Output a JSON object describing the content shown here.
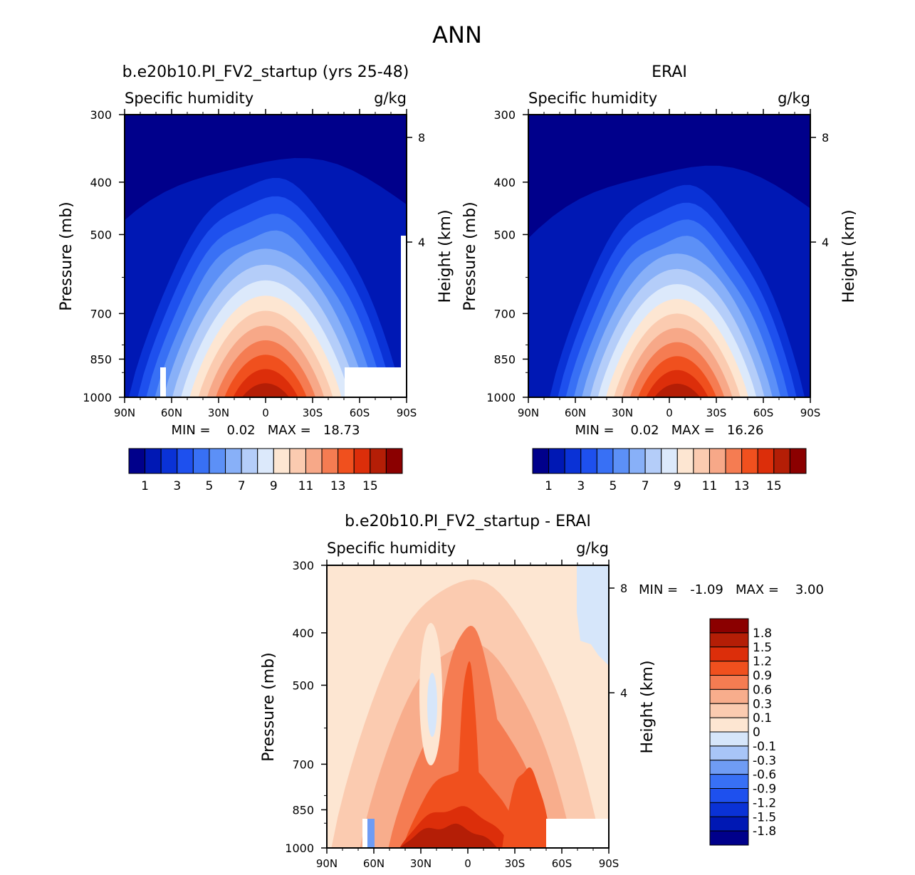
{
  "main_title": "ANN",
  "colors": {
    "abs_levels": [
      "#00008b",
      "#0018b4",
      "#0a32d6",
      "#1e50ee",
      "#3870f5",
      "#5c90f7",
      "#88b0f8",
      "#b4cdf9",
      "#dce9fb",
      "#fde6d2",
      "#fbcbb0",
      "#f7a888",
      "#f57c52",
      "#f0501e",
      "#dc2e0a",
      "#b41e06",
      "#8b0000"
    ],
    "diff_levels": [
      "#00008b",
      "#0018b4",
      "#0a32d6",
      "#1e50ee",
      "#3870f5",
      "#6f9cf4",
      "#a8c5f7",
      "#d6e6fa",
      "#fde6d2",
      "#fbcbb0",
      "#f8ad8c",
      "#f57c52",
      "#f0501e",
      "#dc2e0a",
      "#b41e06",
      "#8b0000"
    ]
  },
  "panels": [
    {
      "title": "b.e20b10.PI_FV2_startup (yrs 25-48)",
      "left_label": "Specific humidity",
      "right_label": "g/kg",
      "ylabel": "Pressure (mb)",
      "ylabel_right": "Height (km)",
      "minmax": "MIN =    0.02   MAX =   18.73",
      "colorbar_ticks": [
        "1",
        "3",
        "5",
        "7",
        "9",
        "11",
        "13",
        "15"
      ]
    },
    {
      "title": "ERAI",
      "left_label": "Specific humidity",
      "right_label": "g/kg",
      "ylabel": "Pressure (mb)",
      "ylabel_right": "Height (km)",
      "minmax": "MIN =    0.02   MAX =   16.26",
      "colorbar_ticks": [
        "1",
        "3",
        "5",
        "7",
        "9",
        "11",
        "13",
        "15"
      ]
    },
    {
      "title": "b.e20b10.PI_FV2_startup - ERAI",
      "left_label": "Specific humidity",
      "right_label": "g/kg",
      "ylabel": "Pressure (mb)",
      "ylabel_right": "Height (km)",
      "minmax": "MIN =   -1.09   MAX =    3.00",
      "colorbar_ticks": [
        "1.8",
        "1.5",
        "1.2",
        "0.9",
        "0.6",
        "0.3",
        "0.1",
        "0",
        "-0.1",
        "-0.3",
        "-0.6",
        "-0.9",
        "-1.2",
        "-1.5",
        "-1.8"
      ]
    }
  ],
  "axes": {
    "y_ticks": [
      "300",
      "400",
      "500",
      "700",
      "850",
      "1000"
    ],
    "x_ticks": [
      "90N",
      "60N",
      "30N",
      "0",
      "30S",
      "60S",
      "90S"
    ],
    "x_ticks_diff": [
      "90N",
      "60N",
      "30N",
      "0",
      "30S",
      "60S",
      "90S"
    ],
    "height_ticks": [
      "8",
      "4"
    ]
  },
  "chart_data": [
    {
      "type": "heatmap",
      "title": "b.e20b10.PI_FV2_startup (yrs 25-48)",
      "x_range": [
        "90N",
        "90S"
      ],
      "y_range_mb": [
        1000,
        300
      ],
      "y_ticks_mb": [
        300,
        400,
        500,
        700,
        850,
        1000
      ],
      "height_ticks_km": [
        8,
        4
      ],
      "levels": [
        1,
        2,
        3,
        4,
        5,
        6,
        7,
        8,
        9,
        10,
        11,
        12,
        13,
        14,
        15,
        16
      ],
      "peak_lat": 0,
      "max_value": 18.73,
      "min_value": 0.02,
      "units": "g/kg"
    },
    {
      "type": "heatmap",
      "title": "ERAI",
      "x_range": [
        "90N",
        "90S"
      ],
      "y_range_mb": [
        1000,
        300
      ],
      "y_ticks_mb": [
        300,
        400,
        500,
        700,
        850,
        1000
      ],
      "height_ticks_km": [
        8,
        4
      ],
      "levels": [
        1,
        2,
        3,
        4,
        5,
        6,
        7,
        8,
        9,
        10,
        11,
        12,
        13,
        14,
        15,
        16
      ],
      "peak_lat": -5,
      "max_value": 16.26,
      "min_value": 0.02,
      "units": "g/kg"
    },
    {
      "type": "heatmap",
      "title": "b.e20b10.PI_FV2_startup - ERAI",
      "x_range": [
        "90N",
        "90S"
      ],
      "y_range_mb": [
        1000,
        300
      ],
      "levels": [
        -1.8,
        -1.5,
        -1.2,
        -0.9,
        -0.6,
        -0.3,
        -0.1,
        0,
        0.1,
        0.3,
        0.6,
        0.9,
        1.2,
        1.5,
        1.8
      ],
      "max_value": 3.0,
      "min_value": -1.09,
      "units": "g/kg"
    }
  ]
}
